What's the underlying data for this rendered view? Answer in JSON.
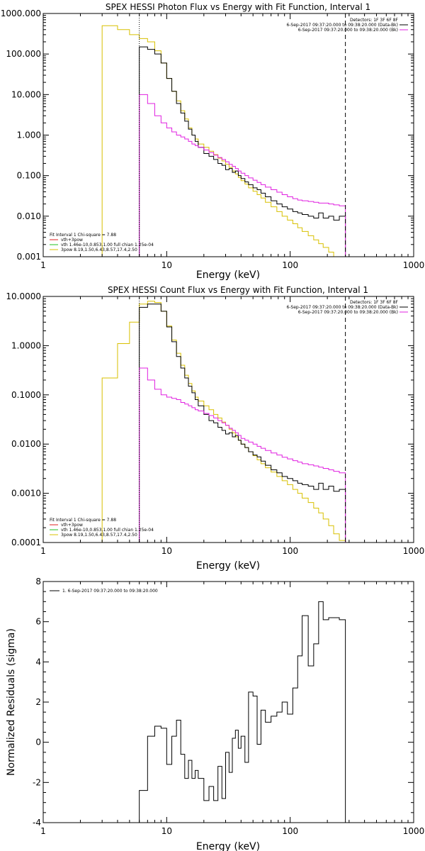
{
  "chart_data": [
    {
      "type": "line",
      "title": "SPEX HESSI Photon Flux vs Energy with Fit Function, Interval 1",
      "xlabel": "Energy (keV)",
      "ylabel": "",
      "x_scale": "log",
      "y_scale": "log",
      "xlim": [
        1,
        1000
      ],
      "ylim": [
        0.001,
        1000
      ],
      "x_tick_labels": [
        "1",
        "10",
        "100",
        "1000"
      ],
      "x_tick_values": [
        1,
        10,
        100,
        1000
      ],
      "y_tick_labels": [
        "0.001",
        "0.010",
        "0.100",
        "1.000",
        "10.000",
        "100.000",
        "1000.000"
      ],
      "y_tick_values": [
        0.001,
        0.01,
        0.1,
        1,
        10,
        100,
        1000
      ],
      "legend_top_right": [
        {
          "text": "Detectors: 1F 3F 6F 8F",
          "color": "#000000"
        },
        {
          "text": "6-Sep-2017 09:37:20.000 to 09:38:20.000 (Data-Bk)",
          "color": "#000000"
        },
        {
          "text": "6-Sep-2017 09:37:20.000 to 09:38:20.000 (Bk)",
          "color": "#e020e0"
        }
      ],
      "legend_bottom_left": [
        {
          "text": "Fit Interval 1    Chi-square = 7.88",
          "color": "#000000"
        },
        {
          "text": "vth+3pow",
          "color": "#e02020"
        },
        {
          "text": "vth 1.46e-10,0.853,1.00  full chian 1.25e-04",
          "color": "#20c020"
        },
        {
          "text": "3pow 8.19,1.50,6.43,8.57,17.4,2.50",
          "color": "#d8c000"
        }
      ],
      "vline_dotted": 6,
      "vline_dashed": 280,
      "series": [
        {
          "name": "vth+3pow",
          "color": "#d8c000",
          "edges": [
            3,
            4,
            5,
            6,
            7,
            8,
            9,
            10,
            11,
            12,
            13,
            14,
            15,
            16,
            17,
            18,
            20,
            22,
            24,
            26,
            28,
            30,
            32,
            34,
            36,
            38,
            40,
            43,
            46,
            50,
            54,
            58,
            63,
            70,
            78,
            86,
            95,
            105,
            115,
            125,
            140,
            155,
            170,
            185,
            205,
            225,
            250,
            280
          ],
          "values": [
            500,
            400,
            300,
            240,
            200,
            120,
            60,
            25,
            12,
            7,
            4,
            2.5,
            1.5,
            1,
            0.8,
            0.6,
            0.5,
            0.4,
            0.33,
            0.27,
            0.23,
            0.19,
            0.16,
            0.13,
            0.11,
            0.09,
            0.075,
            0.062,
            0.05,
            0.041,
            0.034,
            0.028,
            0.022,
            0.017,
            0.013,
            0.01,
            0.008,
            0.0065,
            0.0052,
            0.0042,
            0.0033,
            0.0026,
            0.0021,
            0.0017,
            0.0013,
            0.001,
            0.00075
          ]
        },
        {
          "name": "Data-Bk",
          "color": "#000000",
          "edges": [
            6,
            7,
            8,
            9,
            10,
            11,
            12,
            13,
            14,
            15,
            16,
            17,
            18,
            20,
            22,
            24,
            26,
            28,
            30,
            32,
            34,
            36,
            38,
            40,
            43,
            46,
            50,
            54,
            58,
            63,
            70,
            78,
            86,
            95,
            105,
            115,
            125,
            140,
            155,
            170,
            185,
            205,
            225,
            250,
            280
          ],
          "values": [
            150,
            130,
            100,
            60,
            25,
            12,
            6,
            3.5,
            2.2,
            1.4,
            1,
            0.7,
            0.5,
            0.35,
            0.3,
            0.25,
            0.2,
            0.18,
            0.14,
            0.15,
            0.12,
            0.13,
            0.1,
            0.085,
            0.07,
            0.06,
            0.05,
            0.045,
            0.037,
            0.03,
            0.024,
            0.02,
            0.017,
            0.015,
            0.013,
            0.012,
            0.011,
            0.01,
            0.009,
            0.012,
            0.009,
            0.01,
            0.008,
            0.01
          ]
        },
        {
          "name": "Bk",
          "color": "#e020e0",
          "edges": [
            6,
            7,
            8,
            9,
            10,
            11,
            12,
            13,
            14,
            15,
            16,
            17,
            18,
            20,
            22,
            24,
            26,
            28,
            30,
            32,
            34,
            36,
            38,
            40,
            43,
            46,
            50,
            54,
            58,
            63,
            70,
            78,
            86,
            95,
            105,
            115,
            125,
            140,
            155,
            170,
            185,
            205,
            225,
            250,
            280
          ],
          "values": [
            10,
            6,
            3,
            2,
            1.5,
            1.2,
            1,
            0.9,
            0.8,
            0.7,
            0.6,
            0.55,
            0.5,
            0.43,
            0.37,
            0.32,
            0.28,
            0.25,
            0.22,
            0.19,
            0.17,
            0.15,
            0.13,
            0.115,
            0.1,
            0.088,
            0.077,
            0.068,
            0.06,
            0.052,
            0.045,
            0.039,
            0.034,
            0.03,
            0.027,
            0.025,
            0.024,
            0.023,
            0.022,
            0.021,
            0.021,
            0.02,
            0.019,
            0.018
          ]
        }
      ]
    },
    {
      "type": "line",
      "title": "SPEX HESSI Count Flux vs Energy with Fit Function, Interval 1",
      "xlabel": "Energy (keV)",
      "ylabel": "",
      "x_scale": "log",
      "y_scale": "log",
      "xlim": [
        1,
        1000
      ],
      "ylim": [
        0.0001,
        10
      ],
      "x_tick_labels": [
        "1",
        "10",
        "100",
        "1000"
      ],
      "x_tick_values": [
        1,
        10,
        100,
        1000
      ],
      "y_tick_labels": [
        "0.0001",
        "0.0010",
        "0.0100",
        "0.1000",
        "1.0000",
        "10.0000"
      ],
      "y_tick_values": [
        0.0001,
        0.001,
        0.01,
        0.1,
        1,
        10
      ],
      "legend_top_right": [
        {
          "text": "Detectors: 1F 3F 6F 8F",
          "color": "#000000"
        },
        {
          "text": "6-Sep-2017 09:37:20.000 to 09:38:20.000 (Data-Bk)",
          "color": "#000000"
        },
        {
          "text": "6-Sep-2017 09:37:20.000 to 09:38:20.000 (Bk)",
          "color": "#e020e0"
        }
      ],
      "legend_bottom_left": [
        {
          "text": "Fit Interval 1    Chi-square = 7.88",
          "color": "#000000"
        },
        {
          "text": "vth+3pow",
          "color": "#e02020"
        },
        {
          "text": "vth 1.46e-10,0.853,1.00  full chian 1.25e-04",
          "color": "#20c020"
        },
        {
          "text": "3pow 8.19,1.50,6.43,8.57,17.4,2.50",
          "color": "#d8c000"
        }
      ],
      "vline_dotted": 6,
      "vline_dashed": 280,
      "series": [
        {
          "name": "vth+3pow",
          "color": "#d8c000",
          "edges": [
            3,
            4,
            5,
            6,
            7,
            8,
            9,
            10,
            11,
            12,
            13,
            14,
            15,
            16,
            17,
            18,
            20,
            22,
            24,
            26,
            28,
            30,
            32,
            34,
            36,
            38,
            40,
            43,
            46,
            50,
            54,
            58,
            63,
            70,
            78,
            86,
            95,
            105,
            115,
            125,
            140,
            155,
            170,
            185,
            205,
            225,
            250,
            280
          ],
          "values": [
            0.22,
            1.1,
            3,
            7,
            8,
            7.5,
            5,
            2.5,
            1.3,
            0.7,
            0.4,
            0.25,
            0.17,
            0.12,
            0.09,
            0.075,
            0.06,
            0.05,
            0.04,
            0.034,
            0.028,
            0.024,
            0.02,
            0.017,
            0.014,
            0.012,
            0.01,
            0.0085,
            0.007,
            0.0058,
            0.0048,
            0.004,
            0.0033,
            0.0027,
            0.0022,
            0.0018,
            0.0015,
            0.0012,
            0.001,
            0.0008,
            0.00065,
            0.0005,
            0.0004,
            0.0003,
            0.00022,
            0.00015,
            0.00011
          ]
        },
        {
          "name": "Data-Bk",
          "color": "#000000",
          "edges": [
            6,
            7,
            8,
            9,
            10,
            11,
            12,
            13,
            14,
            15,
            16,
            17,
            18,
            20,
            22,
            24,
            26,
            28,
            30,
            32,
            34,
            36,
            38,
            40,
            43,
            46,
            50,
            54,
            58,
            63,
            70,
            78,
            86,
            95,
            105,
            115,
            125,
            140,
            155,
            170,
            185,
            205,
            225,
            250,
            280
          ],
          "values": [
            6,
            7,
            7,
            5,
            2.4,
            1.2,
            0.6,
            0.35,
            0.22,
            0.15,
            0.11,
            0.08,
            0.06,
            0.04,
            0.03,
            0.027,
            0.022,
            0.019,
            0.016,
            0.017,
            0.014,
            0.015,
            0.012,
            0.01,
            0.0085,
            0.007,
            0.006,
            0.0055,
            0.0045,
            0.0037,
            0.003,
            0.0026,
            0.0022,
            0.002,
            0.0018,
            0.0016,
            0.0015,
            0.0014,
            0.0012,
            0.0016,
            0.0012,
            0.0014,
            0.0011,
            0.0012
          ]
        },
        {
          "name": "Bk",
          "color": "#e020e0",
          "edges": [
            6,
            7,
            8,
            9,
            10,
            11,
            12,
            13,
            14,
            15,
            16,
            17,
            18,
            20,
            22,
            24,
            26,
            28,
            30,
            32,
            34,
            36,
            38,
            40,
            43,
            46,
            50,
            54,
            58,
            63,
            70,
            78,
            86,
            95,
            105,
            115,
            125,
            140,
            155,
            170,
            185,
            205,
            225,
            250,
            280
          ],
          "values": [
            0.35,
            0.2,
            0.13,
            0.1,
            0.09,
            0.085,
            0.08,
            0.07,
            0.065,
            0.06,
            0.055,
            0.05,
            0.047,
            0.042,
            0.038,
            0.034,
            0.03,
            0.027,
            0.024,
            0.021,
            0.019,
            0.017,
            0.015,
            0.013,
            0.012,
            0.011,
            0.01,
            0.009,
            0.0082,
            0.0074,
            0.0066,
            0.006,
            0.0054,
            0.005,
            0.0046,
            0.0043,
            0.004,
            0.0038,
            0.0036,
            0.0034,
            0.0032,
            0.003,
            0.0028,
            0.0026
          ]
        }
      ]
    },
    {
      "type": "line",
      "title": "",
      "xlabel": "Energy (keV)",
      "ylabel": "Normalized Residuals (sigma)",
      "x_scale": "log",
      "y_scale": "linear",
      "xlim": [
        1,
        1000
      ],
      "ylim": [
        -4,
        8
      ],
      "x_tick_labels": [
        "1",
        "10",
        "100",
        "1000"
      ],
      "x_tick_values": [
        1,
        10,
        100,
        1000
      ],
      "y_tick_labels": [
        "-4",
        "-2",
        "0",
        "2",
        "4",
        "6",
        "8"
      ],
      "y_tick_values": [
        -4,
        -2,
        0,
        2,
        4,
        6,
        8
      ],
      "legend_top_left": [
        {
          "text": "1.  6-Sep-2017 09:37:20.000 to 09:38:20.000",
          "color": "#000000"
        }
      ],
      "series": [
        {
          "name": "1.  6-Sep-2017 09:37:20.000 to 09:38:20.000",
          "color": "#000000",
          "edges": [
            6,
            7,
            8,
            9,
            10,
            11,
            12,
            13,
            14,
            15,
            16,
            17,
            18,
            20,
            22,
            24,
            26,
            28,
            30,
            32,
            34,
            36,
            38,
            40,
            43,
            46,
            50,
            54,
            58,
            63,
            70,
            78,
            86,
            95,
            105,
            115,
            125,
            140,
            155,
            170,
            185,
            205,
            225,
            250,
            280
          ],
          "values": [
            -2.4,
            0.3,
            0.8,
            0.7,
            -1.1,
            0.3,
            1.1,
            -0.6,
            -1.8,
            -0.9,
            -1.8,
            -1.4,
            -1.8,
            -2.9,
            -2.2,
            -2.9,
            -1.2,
            -2.8,
            -0.5,
            -1.5,
            0.2,
            0.6,
            -0.3,
            0.3,
            -1.0,
            2.5,
            2.3,
            -0.1,
            1.6,
            1.0,
            1.3,
            1.5,
            2.0,
            1.4,
            2.7,
            4.3,
            6.3,
            3.8,
            4.9,
            7.0,
            6.1,
            6.2,
            6.2,
            6.1
          ]
        }
      ]
    }
  ]
}
